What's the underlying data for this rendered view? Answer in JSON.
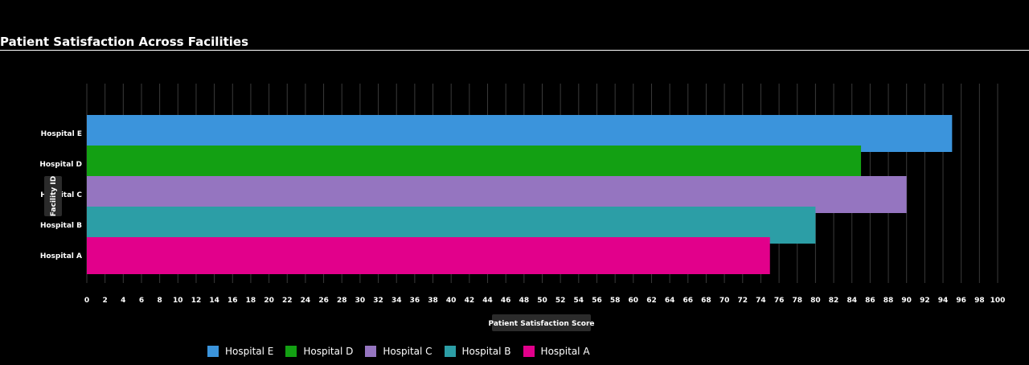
{
  "title": "Patient Satisfaction Across Facilities",
  "chart_data": {
    "type": "bar",
    "orientation": "horizontal",
    "title": "Patient Satisfaction Across Facilities",
    "xlabel": "Patient Satisfaction Score",
    "ylabel": "Facility ID",
    "xlim": [
      0,
      100
    ],
    "x_tick_step": 2,
    "grid": true,
    "legend_placement": "bottom",
    "categories": [
      "Hospital E",
      "Hospital D",
      "Hospital C",
      "Hospital B",
      "Hospital A"
    ],
    "values": [
      95,
      85,
      90,
      80,
      75
    ],
    "colors": [
      "#3b94dc",
      "#13a013",
      "#9575c0",
      "#2c9ea6",
      "#e2008b"
    ]
  }
}
